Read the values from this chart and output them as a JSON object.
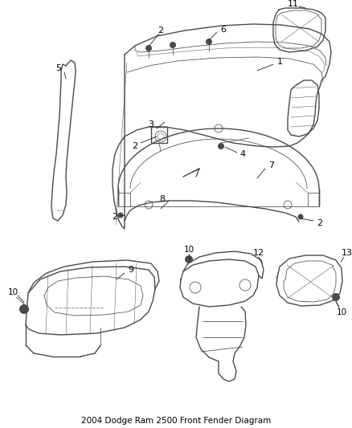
{
  "bg_color": "#ffffff",
  "line_color": "#4a4a4a",
  "lw_main": 1.0,
  "lw_thin": 0.55,
  "lw_detail": 0.35,
  "fig_width": 4.38,
  "fig_height": 5.33,
  "dpi": 100,
  "title": "2004 Dodge Ram 2500 Front Fender Diagram",
  "title_fontsize": 7.5,
  "label_fontsize": 7.5,
  "callout_fontsize": 8.0
}
